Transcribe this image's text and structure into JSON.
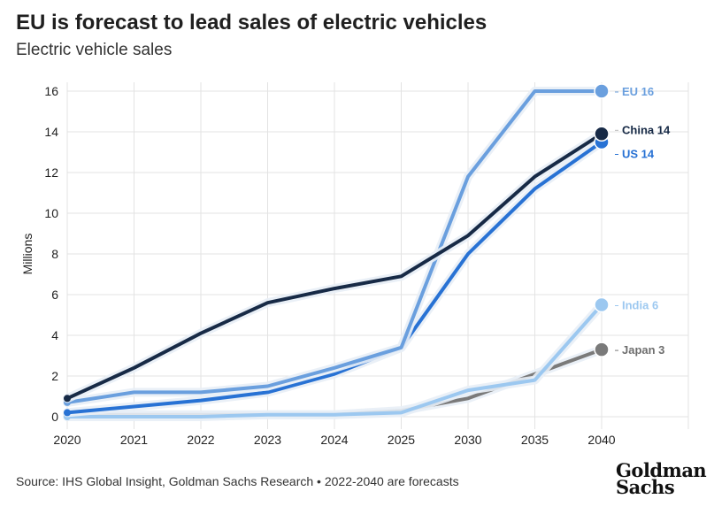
{
  "header": {
    "title": "EU is forecast to lead sales of electric vehicles",
    "subtitle": "Electric vehicle sales"
  },
  "footer": {
    "source": "Source: IHS Global Insight, Goldman Sachs Research • 2022-2040 are forecasts",
    "logo_line1": "Goldman",
    "logo_line2": "Sachs"
  },
  "chart_data": {
    "type": "line",
    "title": "EU is forecast to lead sales of electric vehicles",
    "subtitle": "Electric vehicle sales",
    "xlabel": "",
    "ylabel": "Millions",
    "categories": [
      "2020",
      "2021",
      "2022",
      "2023",
      "2024",
      "2025",
      "2030",
      "2035",
      "2040"
    ],
    "ylim": [
      0,
      16
    ],
    "yticks": [
      0,
      2,
      4,
      6,
      8,
      10,
      12,
      14,
      16
    ],
    "grid": true,
    "series": [
      {
        "name": "Japan",
        "end_label": "Japan 3",
        "color": "#7a7a7a",
        "values": [
          0.1,
          0.1,
          0.1,
          0.1,
          0.1,
          0.3,
          0.9,
          2.1,
          3.3
        ]
      },
      {
        "name": "India",
        "end_label": "India 6",
        "color": "#9cc8f0",
        "values": [
          0.0,
          0.0,
          0.0,
          0.1,
          0.1,
          0.2,
          1.3,
          1.8,
          5.5
        ]
      },
      {
        "name": "US",
        "end_label": "US 14",
        "color": "#2872d4",
        "values": [
          0.2,
          0.5,
          0.8,
          1.2,
          2.1,
          3.4,
          8.0,
          11.2,
          13.5
        ]
      },
      {
        "name": "EU",
        "end_label": "EU 16",
        "color": "#6a9fde",
        "values": [
          0.7,
          1.2,
          1.2,
          1.5,
          2.4,
          3.4,
          11.8,
          16.0,
          16.0
        ]
      },
      {
        "name": "China",
        "end_label": "China 14",
        "color": "#172a46",
        "values": [
          0.9,
          2.4,
          4.1,
          5.6,
          6.3,
          6.9,
          8.9,
          11.8,
          13.9
        ]
      }
    ]
  }
}
